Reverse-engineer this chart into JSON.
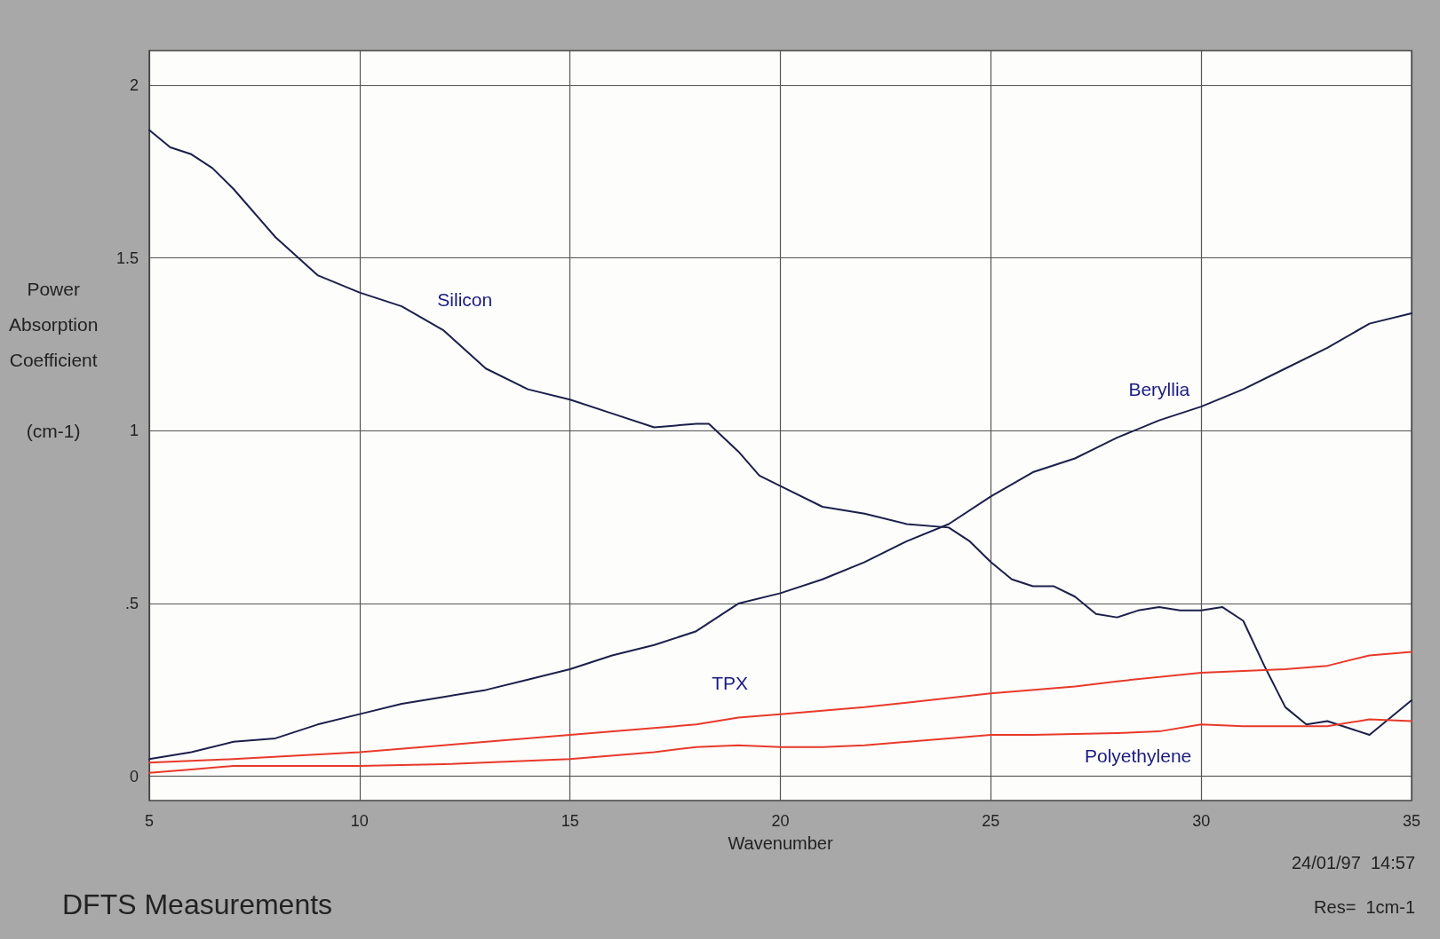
{
  "chart_data": {
    "type": "line",
    "title": "DFTS Measurements",
    "xlabel": "Wavenumber",
    "ylabel": "Power\nAbsorption\nCoefficient\n\n(cm-1)",
    "annotations": [
      "24/01/97  14:57",
      "Res=  1cm-1"
    ],
    "xlim": [
      5,
      35
    ],
    "xticks": [
      5,
      10,
      15,
      20,
      25,
      30,
      35
    ],
    "ylim": [
      -0.07,
      2.1
    ],
    "yticks": [
      0,
      {
        "value": 0.5,
        "label": ".5"
      },
      1,
      1.5,
      2
    ],
    "grid": true,
    "legend": false,
    "marker": "none",
    "line_style": "solid",
    "series": [
      {
        "name": "Silicon",
        "color": "#1c1f4a",
        "x": [
          5,
          5.5,
          6,
          6.5,
          7,
          8,
          9,
          10,
          11,
          12,
          13,
          14,
          15,
          16,
          17,
          18,
          18.3,
          19,
          19.5,
          20,
          21,
          22,
          23,
          24,
          24.5,
          25,
          25.5,
          26,
          26.5,
          27,
          27.5,
          28,
          28.5,
          29,
          29.5,
          30,
          30.5,
          31,
          31.5,
          32,
          32.5,
          33,
          33.5,
          34,
          34.5,
          35
        ],
        "values": [
          1.87,
          1.82,
          1.8,
          1.76,
          1.7,
          1.56,
          1.45,
          1.4,
          1.36,
          1.29,
          1.18,
          1.12,
          1.09,
          1.05,
          1.01,
          1.02,
          1.02,
          0.94,
          0.87,
          0.84,
          0.78,
          0.76,
          0.73,
          0.72,
          0.68,
          0.62,
          0.57,
          0.55,
          0.55,
          0.52,
          0.47,
          0.46,
          0.48,
          0.49,
          0.48,
          0.48,
          0.49,
          0.45,
          0.32,
          0.2,
          0.15,
          0.16,
          0.14,
          0.12,
          0.17,
          0.22
        ]
      },
      {
        "name": "Beryllia",
        "color": "#1c1f4a",
        "x": [
          5,
          6,
          7,
          8,
          9,
          10,
          11,
          12,
          13,
          14,
          15,
          16,
          17,
          18,
          19,
          20,
          21,
          22,
          23,
          24,
          25,
          26,
          27,
          28,
          29,
          30,
          31,
          32,
          33,
          34,
          35
        ],
        "values": [
          0.05,
          0.07,
          0.1,
          0.11,
          0.15,
          0.18,
          0.21,
          0.23,
          0.25,
          0.28,
          0.31,
          0.35,
          0.38,
          0.42,
          0.5,
          0.53,
          0.57,
          0.62,
          0.68,
          0.73,
          0.81,
          0.88,
          0.92,
          0.98,
          1.03,
          1.07,
          1.12,
          1.18,
          1.24,
          1.31,
          1.34
        ]
      },
      {
        "name": "TPX",
        "color": "#e8392a",
        "x": [
          5,
          7,
          10,
          12,
          15,
          17,
          18,
          19,
          20,
          22,
          25,
          27,
          28,
          30,
          32,
          33,
          34,
          35
        ],
        "values": [
          0.04,
          0.05,
          0.07,
          0.09,
          0.12,
          0.14,
          0.15,
          0.17,
          0.18,
          0.2,
          0.24,
          0.26,
          0.275,
          0.3,
          0.31,
          0.32,
          0.35,
          0.36
        ]
      },
      {
        "name": "Polyethylene",
        "color": "#e8392a",
        "x": [
          5,
          6,
          7,
          10,
          12,
          15,
          17,
          18,
          19,
          20,
          21,
          22,
          24,
          25,
          26,
          28,
          29,
          30,
          31,
          33,
          34,
          35
        ],
        "values": [
          0.01,
          0.02,
          0.03,
          0.03,
          0.035,
          0.05,
          0.07,
          0.085,
          0.09,
          0.085,
          0.085,
          0.09,
          0.11,
          0.12,
          0.12,
          0.125,
          0.13,
          0.15,
          0.145,
          0.145,
          0.165,
          0.16
        ]
      }
    ]
  }
}
